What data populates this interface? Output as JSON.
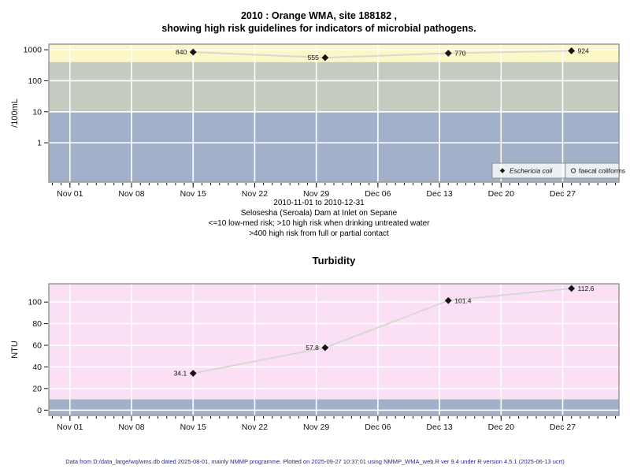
{
  "header": {
    "line1": "2010 : Orange WMA, site 188182 ,",
    "line2": "showing high risk guidelines for indicators of microbial pathogens."
  },
  "caption": {
    "line1": "2010-11-01 to 2010-12-31",
    "line2": "Selosesha (Seroala) Dam at Inlet on Sepane",
    "line3": "<=10 low-med risk; >10 high risk when drinking untreated water",
    "line4": ">400 high risk from full or partial contact"
  },
  "footer": {
    "text": "Data from D:/data_large/wq/wms.db dated 2025-08-01, mainly NMMP programme. Plotted on 2025-09-27 10:37:01 using NMMP_WMA_web.R ver 9.4 under R version 4.5.1 (2025-06-13 ucrt)"
  },
  "colors": {
    "band_high_risk_yellow": "#FBF7C6",
    "band_medium_green": "#C4CDBF",
    "band_low_blue": "#A2B1C9",
    "band_turbidity_pink": "#FADFF5",
    "grid_white": "#FFFFFF",
    "panel_border": "#9A9A9A",
    "series_line": "#D6D9D1",
    "point_black": "#151515",
    "tick_black": "#111111",
    "footer_text": "#26268C",
    "legend_bg": "rgba(255,255,255,0.78)",
    "legend_border": "#8E8E8E"
  },
  "chart_data": [
    {
      "type": "line",
      "title": "",
      "ylabel": "/100mL",
      "yscale": "log",
      "grid": true,
      "y_ticks": [
        1,
        10,
        100,
        1000
      ],
      "y_domain": [
        0.054,
        1514
      ],
      "x_tick_labels": [
        "Nov 01",
        "Nov 08",
        "Nov 15",
        "Nov 22",
        "Nov 29",
        "Dec 06",
        "Dec 13",
        "Dec 20",
        "Dec 27"
      ],
      "x_tick_days": [
        0,
        7,
        14,
        21,
        28,
        35,
        42,
        49,
        56
      ],
      "x_domain_days": [
        -2.4,
        62.4
      ],
      "bands": [
        {
          "from": 400,
          "to": "max",
          "color_key": "band_high_risk_yellow"
        },
        {
          "from": 10,
          "to": 400,
          "color_key": "band_medium_green"
        },
        {
          "from": "min",
          "to": 10,
          "color_key": "band_low_blue"
        }
      ],
      "series": [
        {
          "name": "Eschericia coli",
          "marker": "filled-diamond",
          "points": [
            {
              "x_day": 14,
              "x_date_approx": "Nov 15",
              "value": 840,
              "label": "840",
              "label_side": "left"
            },
            {
              "x_day": 29,
              "x_date_approx": "Nov 30",
              "value": 555,
              "label": "555",
              "label_side": "left"
            },
            {
              "x_day": 43,
              "x_date_approx": "Dec 14",
              "value": 770,
              "label": "770",
              "label_side": "right"
            },
            {
              "x_day": 57,
              "x_date_approx": "Dec 28",
              "value": 924,
              "label": "924",
              "label_side": "right"
            }
          ]
        }
      ],
      "legend": {
        "position": "bottom-right",
        "items": [
          {
            "label": "Eschericia coli",
            "marker": "filled-diamond",
            "italic": true
          },
          {
            "label": "faecal coliforms",
            "marker": "open-circle",
            "italic": false
          }
        ]
      }
    },
    {
      "type": "line",
      "title": "Turbidity",
      "ylabel": "NTU",
      "yscale": "linear",
      "grid": true,
      "y_ticks": [
        0,
        20,
        40,
        60,
        80,
        100
      ],
      "y_domain": [
        -4.9,
        116.9
      ],
      "x_tick_labels": [
        "Nov 01",
        "Nov 08",
        "Nov 15",
        "Nov 22",
        "Nov 29",
        "Dec 06",
        "Dec 13",
        "Dec 20",
        "Dec 27"
      ],
      "x_tick_days": [
        0,
        7,
        14,
        21,
        28,
        35,
        42,
        49,
        56
      ],
      "x_domain_days": [
        -2.4,
        62.4
      ],
      "bands": [
        {
          "from": 10,
          "to": "max",
          "color_key": "band_turbidity_pink"
        },
        {
          "from": "min",
          "to": 10,
          "color_key": "band_low_blue"
        }
      ],
      "series": [
        {
          "name": "Turbidity",
          "marker": "filled-diamond",
          "points": [
            {
              "x_day": 14,
              "x_date_approx": "Nov 15",
              "value": 34.1,
              "label": "34.1",
              "label_side": "left"
            },
            {
              "x_day": 29,
              "x_date_approx": "Nov 30",
              "value": 57.8,
              "label": "57.8",
              "label_side": "left"
            },
            {
              "x_day": 43,
              "x_date_approx": "Dec 14",
              "value": 101.4,
              "label": "101.4",
              "label_side": "right"
            },
            {
              "x_day": 57,
              "x_date_approx": "Dec 28",
              "value": 112.6,
              "label": "112.6",
              "label_side": "right"
            }
          ]
        }
      ]
    }
  ]
}
